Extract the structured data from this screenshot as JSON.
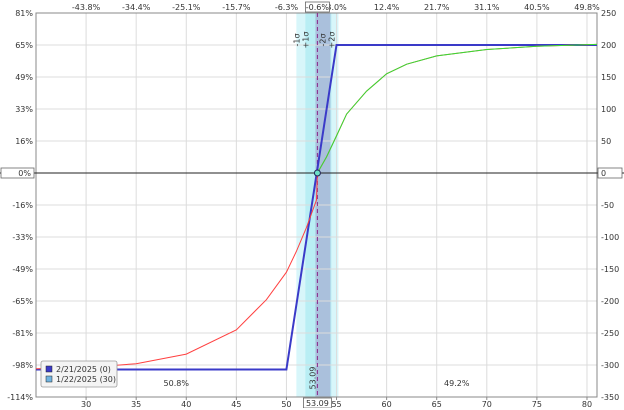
{
  "chart_data": {
    "type": "line",
    "x_axis": {
      "ticks": [
        30,
        35,
        40,
        45,
        50,
        55,
        60,
        65,
        70,
        75,
        80
      ],
      "min": 25,
      "max": 81
    },
    "top_axis": {
      "ticks": [
        "-43.8%",
        "-34.4%",
        "-25.1%",
        "-15.7%",
        "-6.3%",
        "-0.6%",
        "3.0%",
        "12.4%",
        "21.7%",
        "31.1%",
        "40.5%",
        "49.8%"
      ],
      "prices": [
        30,
        35,
        40,
        45,
        50,
        53.09,
        55,
        60,
        65,
        70,
        75,
        80
      ]
    },
    "y_left": {
      "ticks": [
        "81%",
        "65%",
        "49%",
        "33%",
        "16%",
        "0%",
        "-16%",
        "-33%",
        "-49%",
        "-65%",
        "-81%",
        "-98%",
        "-114%"
      ],
      "values": [
        250,
        200,
        150,
        100,
        50,
        0,
        -50,
        -100,
        -150,
        -200,
        -250,
        -300,
        -350
      ]
    },
    "y_right": {
      "ticks": [
        250,
        200,
        150,
        100,
        50,
        0,
        -50,
        -100,
        -150,
        -200,
        -250,
        -300,
        -350
      ],
      "min": -350,
      "max": 250
    },
    "current_price": "53.09",
    "zero_label_left": "0%",
    "zero_label_right": "0",
    "band_labels": [
      "-1σ",
      "+1σ",
      "-2σ",
      "+2σ"
    ],
    "prob_left": "50.8%",
    "prob_right": "49.2%",
    "vline_label": "53.09",
    "series": [
      {
        "name": "2/21/2025 (0)",
        "color": "#3a3ac8",
        "x": [
          25,
          50,
          55,
          81
        ],
        "y": [
          -307,
          -307,
          200,
          200
        ]
      },
      {
        "name": "1/22/2025 (30)",
        "color": "#ff4040",
        "x": [
          25,
          30,
          35,
          40,
          45,
          48,
          50,
          51,
          52,
          53,
          53.09,
          54,
          55,
          56,
          58,
          60,
          62,
          65,
          70,
          75,
          81
        ],
        "y": [
          -306,
          -304,
          -298,
          -283,
          -245,
          -198,
          -155,
          -122,
          -85,
          -42,
          0,
          25,
          58,
          92,
          128,
          155,
          170,
          183,
          193,
          198,
          201
        ]
      }
    ],
    "legend": {
      "placement": "bottom-left"
    }
  }
}
